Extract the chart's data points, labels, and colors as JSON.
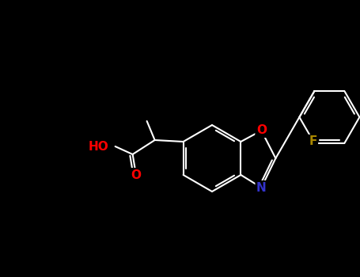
{
  "background_color": "#000000",
  "bond_color": "#ffffff",
  "atom_colors": {
    "O": "#ff0000",
    "N": "#3333cc",
    "F": "#aa8800",
    "C": "#ffffff",
    "H": "#ffffff"
  },
  "figsize": [
    4.55,
    3.5
  ],
  "dpi": 100,
  "lw": 1.5,
  "double_sep": 3.0,
  "font_size": 10
}
